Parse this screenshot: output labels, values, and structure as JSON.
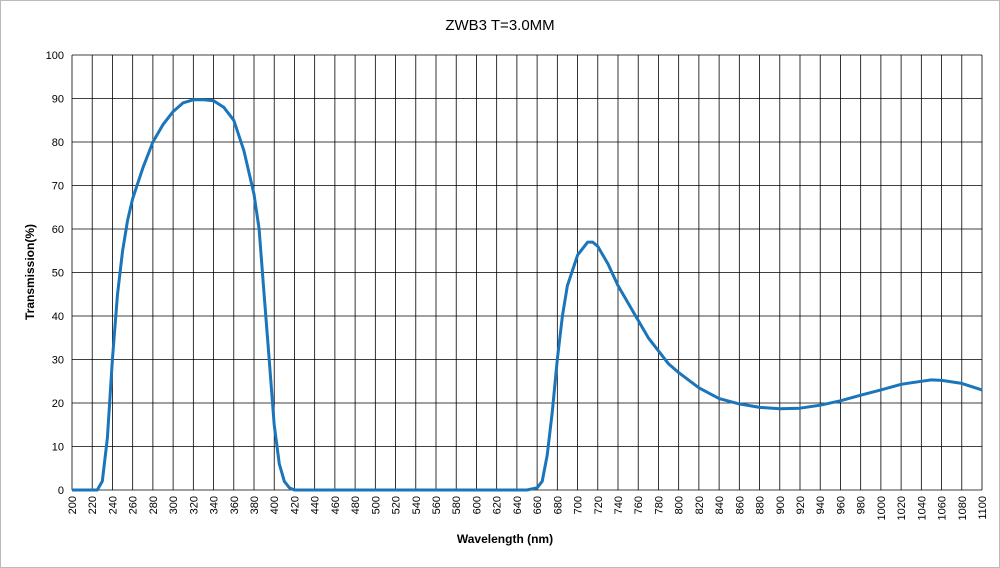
{
  "chart_data": {
    "type": "line",
    "title": "ZWB3 T=3.0MM",
    "x_label": "Wavelength (nm)",
    "y_label": "Transmission(%)",
    "x": [
      200,
      225,
      230,
      235,
      240,
      245,
      250,
      255,
      260,
      270,
      280,
      290,
      300,
      310,
      320,
      330,
      340,
      350,
      360,
      370,
      380,
      385,
      390,
      395,
      400,
      405,
      410,
      415,
      420,
      500,
      600,
      650,
      660,
      665,
      670,
      675,
      680,
      685,
      690,
      700,
      710,
      715,
      720,
      730,
      740,
      750,
      760,
      770,
      780,
      790,
      800,
      820,
      840,
      860,
      880,
      900,
      920,
      940,
      960,
      980,
      1000,
      1020,
      1040,
      1050,
      1060,
      1080,
      1100
    ],
    "series": [
      {
        "name": "ZWB3",
        "color": "#1b75bb",
        "values": [
          0,
          0,
          2,
          12,
          30,
          45,
          55,
          62,
          67,
          74,
          80,
          84,
          87,
          89,
          89.7,
          89.7,
          89.5,
          88,
          85,
          78,
          68,
          60,
          45,
          30,
          15,
          6,
          2,
          0.5,
          0,
          0,
          0,
          0,
          0.5,
          2,
          8,
          18,
          30,
          40,
          47,
          54,
          57,
          57,
          56,
          52,
          47,
          43,
          39,
          35,
          32,
          29,
          27,
          23.5,
          21,
          19.8,
          19,
          18.7,
          18.8,
          19.5,
          20.5,
          21.8,
          23,
          24.3,
          25,
          25.3,
          25.2,
          24.5,
          23
        ]
      }
    ],
    "xlim": [
      200,
      1100
    ],
    "ylim": [
      0,
      100
    ],
    "xticks": [
      200,
      220,
      240,
      260,
      280,
      300,
      320,
      340,
      360,
      380,
      400,
      420,
      440,
      460,
      480,
      500,
      520,
      540,
      560,
      580,
      600,
      620,
      640,
      660,
      680,
      700,
      720,
      740,
      760,
      780,
      800,
      820,
      840,
      860,
      880,
      900,
      920,
      940,
      960,
      980,
      1000,
      1020,
      1040,
      1060,
      1080,
      1100
    ],
    "yticks": [
      0,
      10,
      20,
      30,
      40,
      50,
      60,
      70,
      80,
      90,
      100
    ],
    "grid": true
  }
}
